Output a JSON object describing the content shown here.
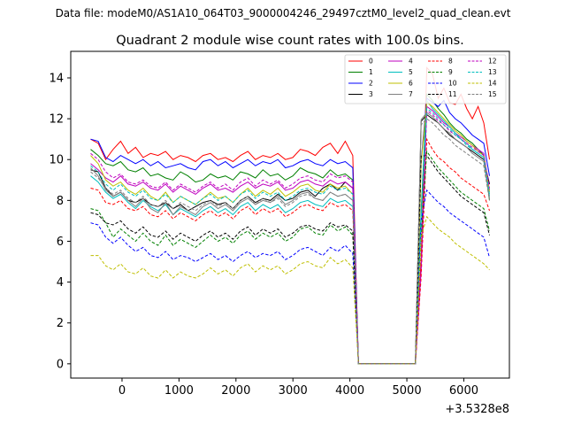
{
  "figure": {
    "suptitle": "Data file: modeM0/AS1A10_064T03_9000004246_29497cztM0_level2_quad_clean.evt",
    "offset_label": "+3.5328e8"
  },
  "chart_data": {
    "type": "line",
    "title": "Quadrant 2 module wise count rates with 100.0s bins.",
    "xlabel": "",
    "ylabel": "",
    "xlim": [
      -900,
      6800
    ],
    "ylim": [
      -0.7,
      15.3
    ],
    "x_ticks": [
      0,
      1000,
      2000,
      3000,
      4000,
      5000,
      6000
    ],
    "y_ticks": [
      0,
      2,
      4,
      6,
      8,
      10,
      12,
      14
    ],
    "x_tick_labels": [
      "0",
      "1000",
      "2000",
      "3000",
      "4000",
      "5000",
      "6000"
    ],
    "y_tick_labels": [
      "0",
      "2",
      "4",
      "6",
      "8",
      "10",
      "12",
      "14"
    ],
    "x_offset": 353280000,
    "legend_position": "top-right",
    "gap_start": 4100,
    "gap_end": 5200,
    "series": [
      {
        "name": "0",
        "color": "#ff0000",
        "style": "solid",
        "pre": [
          11.0,
          10.8,
          10.0,
          10.5,
          10.9,
          10.3,
          10.6,
          10.1,
          10.3,
          10.2,
          10.4,
          10.0,
          10.2,
          10.1,
          9.9,
          10.2,
          10.3,
          10.0,
          10.1,
          9.9,
          10.2,
          10.4,
          10.0,
          10.2,
          10.1,
          10.3,
          10.0,
          10.1,
          10.5,
          10.4,
          10.2,
          10.6,
          10.8,
          10.3,
          10.9,
          10.2
        ],
        "post": [
          14.5,
          14.2,
          13.0,
          13.5,
          12.8,
          12.7,
          13.2,
          12.5,
          12.0,
          12.6,
          11.8,
          10.0
        ]
      },
      {
        "name": "1",
        "color": "#008000",
        "style": "solid",
        "pre": [
          10.5,
          10.2,
          9.8,
          9.7,
          9.9,
          9.5,
          9.4,
          9.6,
          9.2,
          9.3,
          9.1,
          9.0,
          9.4,
          9.2,
          8.9,
          9.0,
          9.3,
          9.1,
          9.2,
          9.0,
          9.4,
          9.3,
          9.1,
          9.5,
          9.2,
          9.3,
          9.0,
          9.2,
          9.6,
          9.4,
          9.3,
          9.1,
          9.5,
          9.2,
          9.3,
          9.0
        ],
        "post": [
          13.2,
          12.9,
          12.5,
          12.2,
          11.8,
          11.5,
          11.3,
          11.0,
          10.8,
          10.5,
          10.2,
          8.0
        ]
      },
      {
        "name": "2",
        "color": "#0000ff",
        "style": "solid",
        "pre": [
          11.0,
          10.9,
          10.1,
          9.9,
          10.2,
          10.0,
          9.8,
          10.0,
          9.7,
          9.9,
          9.6,
          9.7,
          9.8,
          9.6,
          9.5,
          9.9,
          10.0,
          9.7,
          9.9,
          9.6,
          9.8,
          10.0,
          9.7,
          9.9,
          9.8,
          10.0,
          9.6,
          9.7,
          9.9,
          10.0,
          9.8,
          9.7,
          10.0,
          9.8,
          9.9,
          9.6
        ],
        "post": [
          13.0,
          12.8,
          12.6,
          12.9,
          12.3,
          12.0,
          11.8,
          11.5,
          11.2,
          11.0,
          10.8,
          9.2
        ]
      },
      {
        "name": "3",
        "color": "#000000",
        "style": "solid",
        "pre": [
          9.5,
          9.4,
          8.6,
          8.2,
          8.4,
          8.0,
          7.9,
          8.1,
          7.8,
          7.7,
          7.9,
          7.6,
          7.8,
          7.5,
          7.7,
          7.9,
          8.0,
          7.8,
          7.9,
          7.6,
          8.0,
          8.2,
          7.9,
          8.1,
          8.0,
          8.3,
          8.0,
          8.1,
          8.4,
          8.5,
          8.2,
          8.6,
          8.8,
          8.5,
          8.9,
          8.6
        ],
        "post": [
          12.2,
          12.0,
          11.8,
          11.5,
          11.2,
          11.0,
          10.8,
          10.6,
          10.4,
          10.2,
          10.0,
          8.8
        ]
      },
      {
        "name": "4",
        "color": "#bf00bf",
        "style": "solid",
        "pre": [
          9.8,
          9.5,
          9.1,
          8.9,
          9.2,
          8.8,
          8.7,
          8.9,
          8.6,
          8.5,
          8.8,
          8.4,
          8.7,
          8.5,
          8.3,
          8.6,
          8.8,
          8.5,
          8.6,
          8.4,
          8.7,
          8.9,
          8.6,
          8.8,
          8.7,
          8.9,
          8.5,
          8.6,
          8.9,
          9.0,
          8.8,
          8.7,
          9.0,
          8.8,
          8.9,
          8.6
        ],
        "post": [
          12.6,
          12.4,
          12.1,
          11.8,
          11.6,
          11.3,
          11.1,
          10.9,
          10.7,
          10.5,
          10.3,
          8.5
        ]
      },
      {
        "name": "5",
        "color": "#00bfbf",
        "style": "solid",
        "pre": [
          9.2,
          8.9,
          8.4,
          8.1,
          8.3,
          7.9,
          7.6,
          8.0,
          7.7,
          7.5,
          7.8,
          7.3,
          7.6,
          7.4,
          7.2,
          7.5,
          7.7,
          7.4,
          7.6,
          7.3,
          7.7,
          7.9,
          7.5,
          7.8,
          7.6,
          7.8,
          7.4,
          7.6,
          7.9,
          8.0,
          7.8,
          7.7,
          8.1,
          7.9,
          8.0,
          7.7
        ],
        "post": [
          12.9,
          12.5,
          12.2,
          11.9,
          11.6,
          11.3,
          11.0,
          10.8,
          10.5,
          10.3,
          10.1,
          8.2
        ]
      },
      {
        "name": "6",
        "color": "#bfbf00",
        "style": "solid",
        "pre": [
          10.2,
          9.8,
          9.0,
          8.7,
          8.9,
          8.5,
          8.3,
          8.6,
          8.2,
          8.0,
          8.4,
          7.9,
          8.2,
          8.0,
          7.8,
          8.1,
          8.4,
          8.1,
          8.2,
          7.9,
          8.3,
          8.6,
          8.2,
          8.5,
          8.3,
          8.6,
          8.2,
          8.4,
          8.7,
          8.8,
          8.5,
          8.4,
          8.8,
          8.6,
          8.7,
          8.3
        ],
        "post": [
          12.8,
          12.6,
          12.3,
          12.0,
          11.7,
          11.4,
          11.2,
          10.9,
          10.7,
          10.4,
          10.2,
          8.4
        ]
      },
      {
        "name": "7",
        "color": "#808080",
        "style": "solid",
        "pre": [
          9.6,
          9.2,
          8.5,
          8.2,
          8.4,
          8.0,
          7.7,
          8.1,
          7.6,
          7.4,
          7.9,
          7.3,
          7.7,
          7.5,
          7.3,
          7.7,
          7.9,
          7.6,
          7.8,
          7.5,
          7.9,
          8.1,
          7.8,
          8.0,
          7.9,
          8.2,
          7.8,
          8.0,
          8.3,
          8.4,
          8.1,
          8.0,
          8.4,
          8.2,
          8.3,
          8.0
        ],
        "post": [
          12.3,
          12.1,
          11.8,
          11.5,
          11.3,
          11.0,
          10.8,
          10.6,
          10.3,
          10.1,
          9.9,
          8.1
        ]
      },
      {
        "name": "8",
        "color": "#ff0000",
        "style": "dashed",
        "pre": [
          8.6,
          8.5,
          7.9,
          7.8,
          8.0,
          7.6,
          7.5,
          7.7,
          7.3,
          7.2,
          7.5,
          7.1,
          7.4,
          7.2,
          7.0,
          7.3,
          7.5,
          7.2,
          7.4,
          7.1,
          7.5,
          7.7,
          7.3,
          7.6,
          7.4,
          7.6,
          7.2,
          7.4,
          7.7,
          7.8,
          7.6,
          7.5,
          7.9,
          7.7,
          7.8,
          7.5
        ],
        "post": [
          11.0,
          10.5,
          10.1,
          9.9,
          9.6,
          9.4,
          9.1,
          8.9,
          8.7,
          8.5,
          8.3,
          7.5
        ]
      },
      {
        "name": "9",
        "color": "#008000",
        "style": "dashed",
        "pre": [
          7.6,
          7.5,
          6.9,
          6.2,
          6.6,
          6.3,
          6.0,
          6.4,
          6.0,
          5.8,
          6.3,
          5.8,
          6.1,
          5.9,
          5.7,
          6.0,
          6.3,
          6.0,
          6.2,
          5.9,
          6.3,
          6.5,
          6.1,
          6.4,
          6.2,
          6.4,
          6.0,
          6.2,
          6.6,
          6.7,
          6.4,
          6.3,
          6.8,
          6.5,
          6.7,
          6.3
        ],
        "post": [
          10.4,
          10.0,
          9.6,
          9.3,
          9.0,
          8.7,
          8.4,
          8.2,
          8.0,
          7.8,
          7.6,
          6.5
        ]
      },
      {
        "name": "10",
        "color": "#0000ff",
        "style": "dashed",
        "pre": [
          6.9,
          6.8,
          6.2,
          5.9,
          6.2,
          5.8,
          5.5,
          5.7,
          5.3,
          5.2,
          5.5,
          5.1,
          5.3,
          5.2,
          5.0,
          5.2,
          5.4,
          5.1,
          5.3,
          5.0,
          5.3,
          5.5,
          5.2,
          5.4,
          5.3,
          5.5,
          5.1,
          5.3,
          5.6,
          5.7,
          5.5,
          5.3,
          5.7,
          5.5,
          5.8,
          5.4
        ],
        "post": [
          8.5,
          8.2,
          7.9,
          7.7,
          7.4,
          7.2,
          7.0,
          6.8,
          6.6,
          6.4,
          6.2,
          5.2
        ]
      },
      {
        "name": "11",
        "color": "#000000",
        "style": "dashed",
        "pre": [
          7.4,
          7.3,
          6.9,
          6.8,
          7.0,
          6.6,
          6.4,
          6.7,
          6.3,
          6.2,
          6.5,
          6.1,
          6.4,
          6.2,
          6.0,
          6.3,
          6.5,
          6.2,
          6.4,
          6.1,
          6.5,
          6.7,
          6.3,
          6.6,
          6.4,
          6.6,
          6.2,
          6.4,
          6.7,
          6.8,
          6.6,
          6.5,
          6.9,
          6.7,
          6.8,
          6.5
        ],
        "post": [
          10.2,
          9.8,
          9.4,
          9.1,
          8.8,
          8.5,
          8.2,
          8.0,
          7.8,
          7.6,
          7.4,
          6.3
        ]
      },
      {
        "name": "12",
        "color": "#bf00bf",
        "style": "dashed",
        "pre": [
          10.3,
          10.0,
          9.4,
          9.1,
          9.3,
          8.9,
          8.8,
          9.0,
          8.7,
          8.6,
          8.9,
          8.5,
          8.8,
          8.6,
          8.4,
          8.7,
          8.9,
          8.6,
          8.8,
          8.5,
          8.9,
          9.1,
          8.7,
          9.0,
          8.8,
          9.0,
          8.6,
          8.8,
          9.1,
          9.2,
          9.0,
          8.9,
          9.3,
          9.1,
          9.2,
          8.9
        ],
        "post": [
          12.4,
          12.2,
          11.9,
          11.7,
          11.4,
          11.2,
          11.0,
          10.8,
          10.6,
          10.4,
          10.2,
          8.6
        ]
      },
      {
        "name": "13",
        "color": "#00bfbf",
        "style": "dashed",
        "pre": [
          9.7,
          9.4,
          8.8,
          8.5,
          8.8,
          8.4,
          8.2,
          8.5,
          8.1,
          8.0,
          8.3,
          7.9,
          8.2,
          8.0,
          7.8,
          8.1,
          8.3,
          8.0,
          8.2,
          7.9,
          8.3,
          8.5,
          8.1,
          8.4,
          8.2,
          8.4,
          8.0,
          8.2,
          8.5,
          8.6,
          8.4,
          8.3,
          8.7,
          8.5,
          8.6,
          8.3
        ],
        "post": [
          12.5,
          12.3,
          12.0,
          11.7,
          11.5,
          11.2,
          11.0,
          10.7,
          10.5,
          10.3,
          10.1,
          8.3
        ]
      },
      {
        "name": "14",
        "color": "#bfbf00",
        "style": "dashed",
        "pre": [
          5.3,
          5.3,
          4.8,
          4.6,
          4.9,
          4.5,
          4.4,
          4.7,
          4.3,
          4.2,
          4.6,
          4.2,
          4.5,
          4.3,
          4.2,
          4.4,
          4.7,
          4.4,
          4.6,
          4.3,
          4.7,
          4.9,
          4.5,
          4.8,
          4.6,
          4.8,
          4.4,
          4.6,
          4.9,
          5.0,
          4.8,
          4.7,
          5.2,
          4.9,
          5.1,
          4.7
        ],
        "post": [
          7.2,
          6.9,
          6.6,
          6.4,
          6.2,
          5.9,
          5.7,
          5.5,
          5.3,
          5.1,
          4.9,
          4.6
        ]
      },
      {
        "name": "15",
        "color": "#808080",
        "style": "dashed",
        "pre": [
          9.4,
          9.1,
          8.6,
          8.3,
          8.5,
          8.1,
          7.9,
          8.2,
          7.8,
          7.7,
          8.0,
          7.6,
          7.9,
          7.7,
          7.5,
          7.8,
          8.0,
          7.7,
          7.9,
          7.6,
          8.0,
          8.2,
          7.8,
          8.1,
          7.9,
          8.1,
          7.7,
          7.9,
          8.2,
          8.3,
          8.1,
          8.0,
          8.4,
          8.2,
          8.3,
          8.0
        ],
        "post": [
          12.0,
          11.8,
          11.5,
          11.2,
          11.0,
          10.7,
          10.5,
          10.3,
          10.1,
          9.9,
          9.7,
          8.0
        ]
      }
    ]
  }
}
